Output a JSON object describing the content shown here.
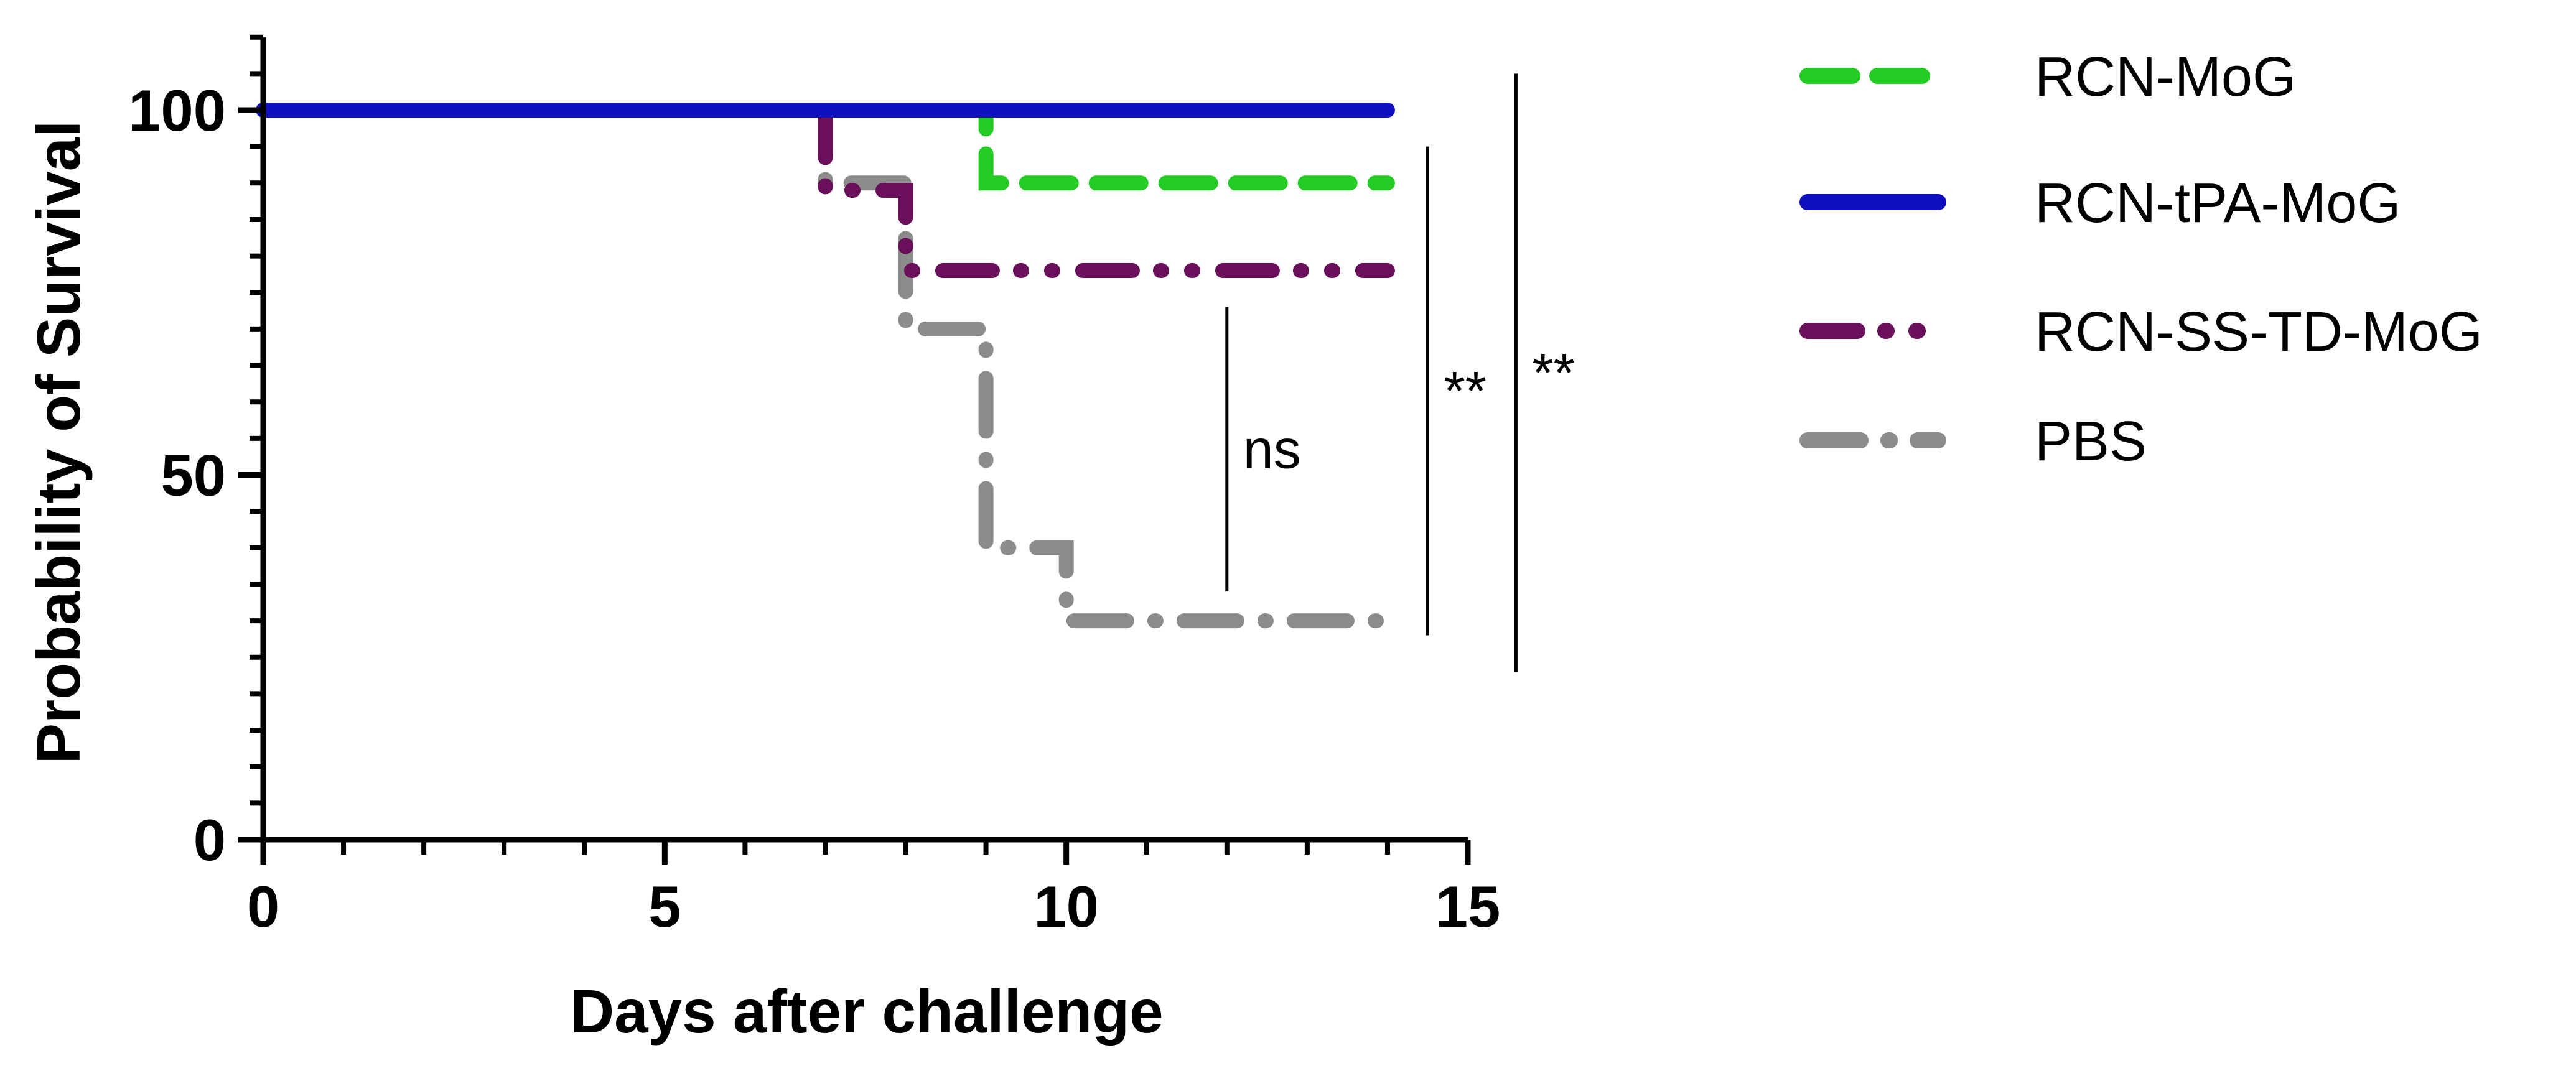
{
  "chart_data": {
    "type": "line",
    "subtype": "survival-step",
    "xlabel": "Days after challenge",
    "ylabel": "Probability of Survival",
    "xlim": [
      0,
      15
    ],
    "ylim": [
      0,
      110
    ],
    "xticks": [
      0,
      5,
      10,
      15
    ],
    "yticks": [
      0,
      50,
      100
    ],
    "grid": false,
    "legend_position": "right",
    "series": [
      {
        "name": "RCN-MoG",
        "color": "#22cc22",
        "style": "dashed",
        "steps": [
          {
            "x": 0,
            "y": 100
          },
          {
            "x": 9,
            "y": 90
          }
        ],
        "end_x": 14
      },
      {
        "name": "RCN-tPA-MoG",
        "color": "#1010c0",
        "style": "solid",
        "steps": [
          {
            "x": 0,
            "y": 100
          }
        ],
        "end_x": 14
      },
      {
        "name": "RCN-SS-TD-MoG",
        "color": "#6a0f5a",
        "style": "dash-dot-dot",
        "steps": [
          {
            "x": 0,
            "y": 100
          },
          {
            "x": 7,
            "y": 89
          },
          {
            "x": 8,
            "y": 78
          }
        ],
        "end_x": 14
      },
      {
        "name": "PBS",
        "color": "#8c8c8c",
        "style": "dash-dot",
        "steps": [
          {
            "x": 0,
            "y": 100
          },
          {
            "x": 7,
            "y": 90
          },
          {
            "x": 8,
            "y": 70
          },
          {
            "x": 9,
            "y": 40
          },
          {
            "x": 10,
            "y": 30
          }
        ],
        "end_x": 14
      }
    ],
    "annotations": [
      {
        "label": "ns",
        "x": 12,
        "y_top": 73,
        "y_bottom": 34
      },
      {
        "label": "**",
        "x": 14.5,
        "y_top": 95,
        "y_bottom": 28
      },
      {
        "label": "**",
        "x": 15.6,
        "y_top": 105,
        "y_bottom": 23
      }
    ]
  }
}
